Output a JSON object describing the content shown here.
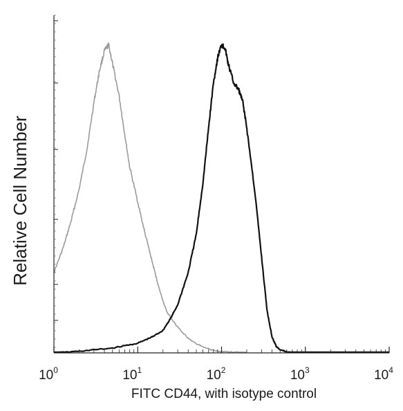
{
  "chart_data": {
    "type": "line",
    "x_scale": "log",
    "xlim": [
      1,
      10000
    ],
    "ylim": [
      0,
      100
    ],
    "xlabel": "FITC  CD44,  with isotype control",
    "ylabel": "Relative Cell Number",
    "x_ticks": [
      {
        "value": 1,
        "base": "10",
        "exp": "0"
      },
      {
        "value": 10,
        "base": "10",
        "exp": "1"
      },
      {
        "value": 100,
        "base": "10",
        "exp": "2"
      },
      {
        "value": 1000,
        "base": "10",
        "exp": "3"
      },
      {
        "value": 10000,
        "base": "10",
        "exp": "4"
      }
    ],
    "grid": false,
    "legend": "none",
    "series": [
      {
        "color": "#9a9a9a",
        "x": [
          1,
          1.3,
          1.6,
          2,
          2.5,
          3,
          3.5,
          4,
          4.5,
          5,
          6,
          7,
          8,
          10,
          12,
          15,
          18,
          22,
          28,
          35,
          45,
          60,
          80,
          100,
          150,
          200
        ],
        "y": [
          25,
          33,
          41,
          51,
          64,
          78,
          88,
          94,
          96,
          90,
          80,
          68,
          58,
          47,
          38,
          28,
          20,
          13,
          9,
          6,
          3.5,
          1.8,
          0.8,
          0.4,
          0.2,
          0
        ]
      },
      {
        "color": "#111111",
        "x": [
          1,
          2,
          5,
          10,
          15,
          20,
          25,
          30,
          40,
          50,
          60,
          70,
          80,
          90,
          100,
          110,
          120,
          140,
          160,
          180,
          200,
          250,
          300,
          350,
          400,
          450,
          500,
          600,
          1000,
          10000
        ],
        "y": [
          0,
          0.5,
          1.5,
          3,
          5,
          7,
          11,
          15,
          25,
          37,
          53,
          70,
          84,
          92,
          96,
          95,
          90,
          84,
          82,
          78,
          70,
          50,
          30,
          13,
          5,
          2,
          1,
          0.3,
          0,
          0
        ]
      }
    ]
  }
}
